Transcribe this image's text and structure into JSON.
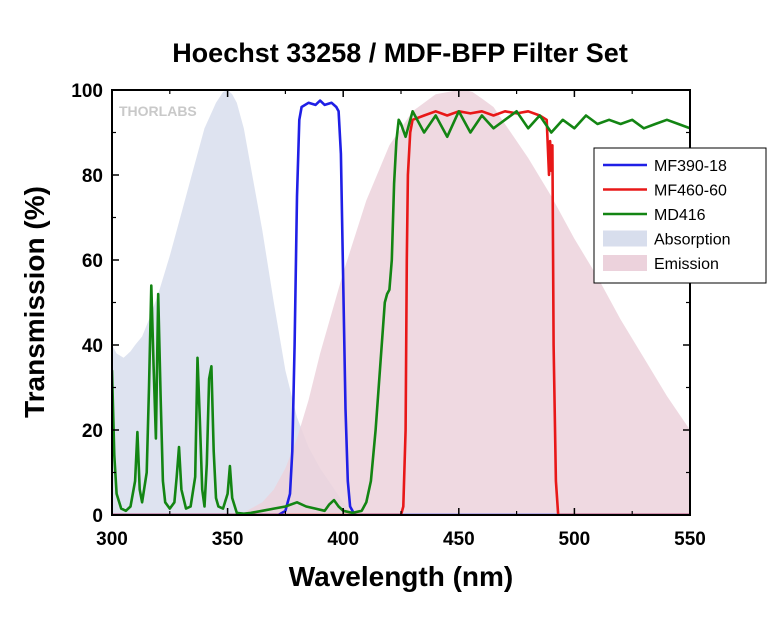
{
  "watermark": "THORLABS",
  "chart_data": {
    "type": "line",
    "title": "Hoechst 33258 / MDF-BFP Filter Set",
    "xlabel": "Wavelength (nm)",
    "ylabel": "Transmission (%)",
    "xlim": [
      300,
      550
    ],
    "ylim": [
      0,
      100
    ],
    "xticks": [
      300,
      350,
      400,
      450,
      500,
      550
    ],
    "yticks": [
      0,
      20,
      40,
      60,
      80,
      100
    ],
    "legend_position": "right",
    "series": [
      {
        "name": "MF390-18",
        "kind": "line",
        "color": "#1f1fe6",
        "x": [
          300,
          372,
          375,
          377,
          378,
          379,
          380,
          381,
          382,
          385,
          388,
          390,
          392,
          395,
          397,
          398,
          399,
          400,
          401,
          402,
          403,
          405,
          550
        ],
        "y": [
          0,
          0,
          1,
          5,
          15,
          40,
          75,
          93,
          96,
          97,
          96.5,
          97.5,
          96.5,
          97,
          96,
          95,
          85,
          55,
          25,
          8,
          2,
          0,
          0
        ]
      },
      {
        "name": "MF460-60",
        "kind": "line",
        "color": "#e81818",
        "x": [
          300,
          425,
          426,
          427,
          427.5,
          428,
          429,
          430,
          435,
          440,
          445,
          450,
          455,
          460,
          465,
          470,
          475,
          480,
          485,
          488,
          489,
          489.5,
          490,
          490.5,
          491,
          492,
          493,
          495,
          550
        ],
        "y": [
          0,
          0,
          2,
          20,
          60,
          80,
          90,
          93,
          94,
          95,
          94,
          95,
          94.5,
          95,
          94,
          95,
          94.5,
          95,
          94,
          93,
          80,
          88,
          81,
          87,
          40,
          8,
          0,
          0,
          0
        ]
      },
      {
        "name": "MD416",
        "kind": "line",
        "color": "#138513",
        "x": [
          300,
          301,
          302,
          304,
          306,
          308,
          310,
          311,
          312,
          313,
          315,
          316,
          317,
          318,
          319,
          320,
          321,
          322,
          323,
          325,
          327,
          328,
          329,
          330,
          332,
          334,
          336,
          337,
          338,
          339,
          340,
          341,
          342,
          343,
          344,
          345,
          346,
          348,
          350,
          351,
          352,
          354,
          357,
          360,
          365,
          370,
          375,
          380,
          384,
          388,
          392,
          394,
          396,
          398,
          400,
          404,
          408,
          410,
          412,
          414,
          416,
          418,
          419,
          420,
          421,
          422,
          423,
          424,
          425,
          427,
          430,
          435,
          440,
          445,
          450,
          455,
          460,
          465,
          470,
          475,
          480,
          485,
          490,
          495,
          500,
          505,
          510,
          515,
          520,
          525,
          530,
          535,
          540,
          545,
          550
        ],
        "y": [
          34,
          14,
          5,
          1.5,
          1,
          2,
          8,
          19.5,
          6,
          3,
          10,
          30,
          54,
          35,
          18,
          52,
          28,
          8,
          3,
          1.5,
          3,
          9,
          16,
          6,
          1.5,
          2,
          9,
          37,
          22,
          6,
          2,
          12,
          32,
          35,
          15,
          4,
          2,
          1.5,
          5,
          11.5,
          4,
          0.5,
          0.3,
          0.5,
          1,
          1.5,
          2,
          3,
          2,
          1.5,
          1,
          2.5,
          3.5,
          2,
          1,
          0.5,
          1,
          3,
          8,
          20,
          35,
          50,
          52,
          53,
          60,
          78,
          88,
          93,
          92,
          89,
          95,
          90,
          94,
          89,
          95,
          90,
          94,
          91,
          93,
          95,
          91,
          94,
          90,
          93,
          91,
          94,
          92,
          93,
          92,
          93,
          91,
          92,
          93,
          92,
          91
        ]
      },
      {
        "name": "Absorption",
        "kind": "area",
        "color": "#d8deed",
        "x": [
          300,
          302,
          305,
          308,
          310,
          313,
          316,
          320,
          325,
          330,
          335,
          340,
          345,
          348,
          350,
          352,
          354,
          357,
          360,
          365,
          370,
          375,
          380,
          385,
          390,
          395,
          400,
          403,
          405
        ],
        "y": [
          40,
          38,
          37,
          38.5,
          40,
          42,
          46,
          52,
          61,
          71,
          81,
          91,
          97,
          99.5,
          100,
          99,
          97,
          91,
          82,
          67,
          50,
          34,
          23,
          16,
          11,
          7,
          3,
          1,
          0
        ]
      },
      {
        "name": "Emission",
        "kind": "area",
        "color": "#ecd2dc",
        "x": [
          355,
          365,
          370,
          375,
          380,
          385,
          390,
          400,
          410,
          420,
          430,
          440,
          445,
          450,
          453,
          456,
          460,
          465,
          470,
          480,
          490,
          500,
          510,
          520,
          530,
          540,
          550
        ],
        "y": [
          0,
          3,
          6,
          11,
          18,
          27,
          38,
          57,
          74,
          87,
          95,
          99,
          99.5,
          100,
          100,
          99.5,
          98,
          96,
          92,
          84,
          75,
          65,
          56,
          46,
          37,
          28,
          20
        ]
      }
    ]
  }
}
